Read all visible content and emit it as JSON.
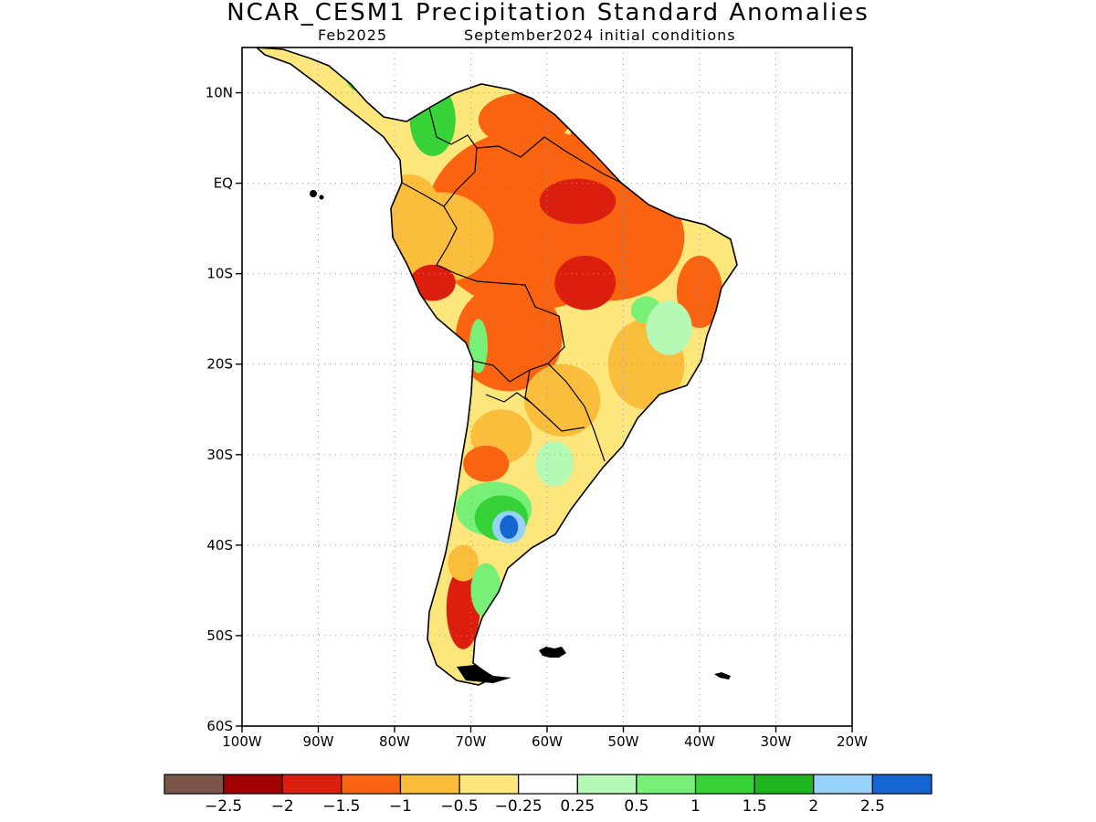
{
  "title": "NCAR_CESM1 Precipitation Standard Anomalies",
  "subtitle": {
    "valid": "Feb2025",
    "init": "September2024 initial conditions"
  },
  "map": {
    "lon_range": [
      -100,
      -20
    ],
    "lat_range": [
      -60,
      15
    ],
    "lon_ticks": [
      -100,
      -90,
      -80,
      -70,
      -60,
      -50,
      -40,
      -30,
      -20
    ],
    "lon_tick_labels": [
      "100W",
      "90W",
      "80W",
      "70W",
      "60W",
      "50W",
      "40W",
      "30W",
      "20W"
    ],
    "lat_ticks": [
      10,
      0,
      -10,
      -20,
      -30,
      -40,
      -50,
      -60
    ],
    "lat_tick_labels": [
      "10N",
      "EQ",
      "10S",
      "20S",
      "30S",
      "40S",
      "50S",
      "60S"
    ],
    "grid": "dotted"
  },
  "colorbar": {
    "colors": [
      "#7a5548",
      "#a00000",
      "#dc1e0f",
      "#fa6410",
      "#fbbe3c",
      "#fde67c",
      "#ffffff",
      "#b4fab4",
      "#78f078",
      "#37d237",
      "#1eb41e",
      "#96d2fa",
      "#1464d2"
    ],
    "labels": [
      "−2.5",
      "−2",
      "−1.5",
      "−1",
      "−0.5",
      "−0.25",
      "0.25",
      "0.5",
      "1",
      "1.5",
      "2",
      "2.5"
    ]
  },
  "anomaly_regions": [
    {
      "lon": -62,
      "lat": -4,
      "rx": 14,
      "ry": 10,
      "level": "-1"
    },
    {
      "lon": -52,
      "lat": -6,
      "rx": 10,
      "ry": 7,
      "level": "-1"
    },
    {
      "lon": -65,
      "lat": -17,
      "rx": 7,
      "ry": 6,
      "level": "-1"
    },
    {
      "lon": -74,
      "lat": -6,
      "rx": 7,
      "ry": 5,
      "level": "-0.5"
    },
    {
      "lon": -78,
      "lat": -3,
      "rx": 4,
      "ry": 4,
      "level": "-0.5"
    },
    {
      "lon": -63,
      "lat": 7,
      "rx": 6,
      "ry": 3,
      "level": "-1"
    },
    {
      "lon": -53,
      "lat": 5,
      "rx": 4,
      "ry": 3,
      "level": "-1"
    },
    {
      "lon": -56,
      "lat": -2,
      "rx": 5,
      "ry": 2.5,
      "level": "-1.5"
    },
    {
      "lon": -55,
      "lat": -11,
      "rx": 4,
      "ry": 3,
      "level": "-1.5"
    },
    {
      "lon": -75,
      "lat": -11,
      "rx": 3,
      "ry": 2,
      "level": "-1.5"
    },
    {
      "lon": -47,
      "lat": -20,
      "rx": 5,
      "ry": 5,
      "level": "-0.5"
    },
    {
      "lon": -58,
      "lat": -24,
      "rx": 5,
      "ry": 4,
      "level": "-0.5"
    },
    {
      "lon": -40,
      "lat": -12,
      "rx": 3,
      "ry": 4,
      "level": "-1"
    },
    {
      "lon": -66,
      "lat": -28,
      "rx": 4,
      "ry": 3,
      "level": "-0.5"
    },
    {
      "lon": -68,
      "lat": -31,
      "rx": 3,
      "ry": 2,
      "level": "-1"
    },
    {
      "lon": -71,
      "lat": -47,
      "rx": 2.2,
      "ry": 4.5,
      "level": "-1.5"
    },
    {
      "lon": -71,
      "lat": -42,
      "rx": 2,
      "ry": 2,
      "level": "-0.5"
    },
    {
      "lon": -75,
      "lat": 7,
      "rx": 3,
      "ry": 4,
      "level": "1"
    },
    {
      "lon": -84,
      "lat": 12,
      "rx": 2.5,
      "ry": 2,
      "level": "1"
    },
    {
      "lon": -69,
      "lat": -18,
      "rx": 1.2,
      "ry": 3,
      "level": "0.5"
    },
    {
      "lon": -67,
      "lat": -36,
      "rx": 5,
      "ry": 3,
      "level": "0.5"
    },
    {
      "lon": -66,
      "lat": -37,
      "rx": 3.5,
      "ry": 2.5,
      "level": "1"
    },
    {
      "lon": -65,
      "lat": -38,
      "rx": 2.2,
      "ry": 1.8,
      "level": "2"
    },
    {
      "lon": -65,
      "lat": -38,
      "rx": 1.2,
      "ry": 1.3,
      "level": "2.5"
    },
    {
      "lon": -68,
      "lat": -45,
      "rx": 2,
      "ry": 3,
      "level": "0.5"
    },
    {
      "lon": -47,
      "lat": -14,
      "rx": 2,
      "ry": 1.5,
      "level": "0.5"
    },
    {
      "lon": -59,
      "lat": -31,
      "rx": 2.5,
      "ry": 2.5,
      "level": "0.25"
    },
    {
      "lon": -44,
      "lat": -16,
      "rx": 3,
      "ry": 3,
      "level": "0.25"
    }
  ]
}
